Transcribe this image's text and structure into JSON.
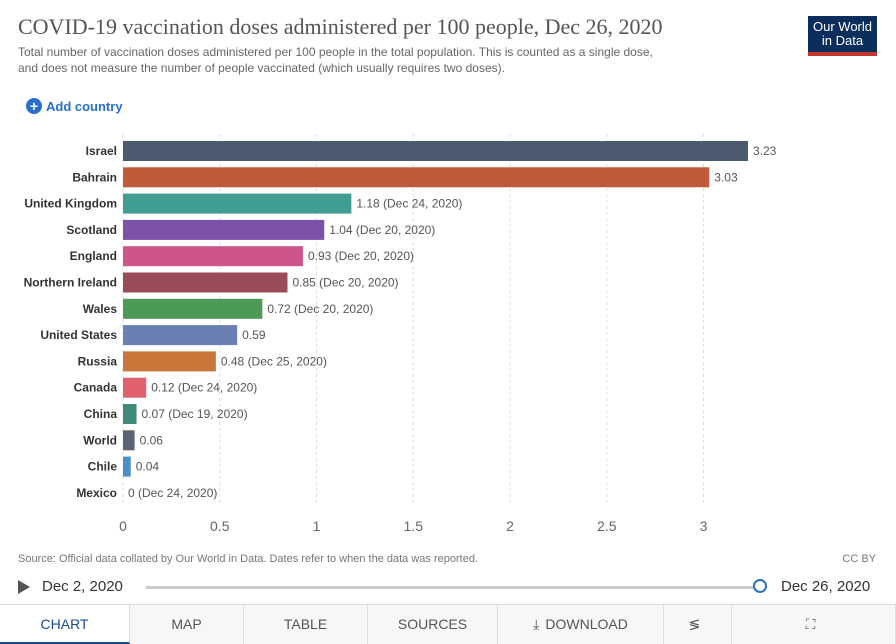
{
  "header": {
    "title": "COVID-19 vaccination doses administered per 100 people, Dec 26, 2020",
    "subtitle_line1": "Total number of vaccination doses administered per 100 people in the total population. This is counted as a single dose,",
    "subtitle_line2": "and does not measure the number of people vaccinated (which usually requires two doses).",
    "logo_line1": "Our World",
    "logo_line2": "in Data",
    "add_country": "Add country"
  },
  "chart_data": {
    "type": "bar",
    "orientation": "horizontal",
    "categories": [
      "Israel",
      "Bahrain",
      "United Kingdom",
      "Scotland",
      "England",
      "Northern Ireland",
      "Wales",
      "United States",
      "Russia",
      "Canada",
      "China",
      "World",
      "Chile",
      "Mexico"
    ],
    "values": [
      3.23,
      3.03,
      1.18,
      1.04,
      0.93,
      0.85,
      0.72,
      0.59,
      0.48,
      0.12,
      0.07,
      0.06,
      0.04,
      0
    ],
    "data_labels": [
      "3.23",
      "3.03",
      "1.18 (Dec 24, 2020)",
      "1.04 (Dec 20, 2020)",
      "0.93 (Dec 20, 2020)",
      "0.85 (Dec 20, 2020)",
      "0.72 (Dec 20, 2020)",
      "0.59",
      "0.48 (Dec 25, 2020)",
      "0.12 (Dec 24, 2020)",
      "0.07 (Dec 19, 2020)",
      "0.06",
      "0.04",
      "0 (Dec 24, 2020)"
    ],
    "colors": [
      "#4c5a6e",
      "#c05a3a",
      "#3f9e91",
      "#7b52a8",
      "#d0538a",
      "#9b4a58",
      "#4d9a56",
      "#6a80b5",
      "#c8763a",
      "#e0606e",
      "#3f8a78",
      "#5c6472",
      "#4a8fc9",
      "#aaaaaa"
    ],
    "xlim": [
      0,
      3.3
    ],
    "xticks": [
      0,
      0.5,
      1,
      1.5,
      2,
      2.5,
      3
    ],
    "xtick_labels": [
      "0",
      "0.5",
      "1",
      "1.5",
      "2",
      "2.5",
      "3"
    ],
    "grid": "vertical-dashed"
  },
  "footer": {
    "source": "Source: Official data collated by Our World in Data. Dates refer to when the data was reported.",
    "license": "CC BY",
    "timeline_start": "Dec 2, 2020",
    "timeline_end": "Dec 26, 2020",
    "timeline_position": 1.0
  },
  "tabs": [
    {
      "label": "CHART",
      "active": true
    },
    {
      "label": "MAP",
      "active": false
    },
    {
      "label": "TABLE",
      "active": false
    },
    {
      "label": "SOURCES",
      "active": false
    },
    {
      "label": "DOWNLOAD",
      "active": false,
      "icon": "download-icon"
    },
    {
      "label": "",
      "active": false,
      "icon": "share-icon"
    },
    {
      "label": "",
      "active": false,
      "icon": "fullscreen-icon"
    }
  ]
}
